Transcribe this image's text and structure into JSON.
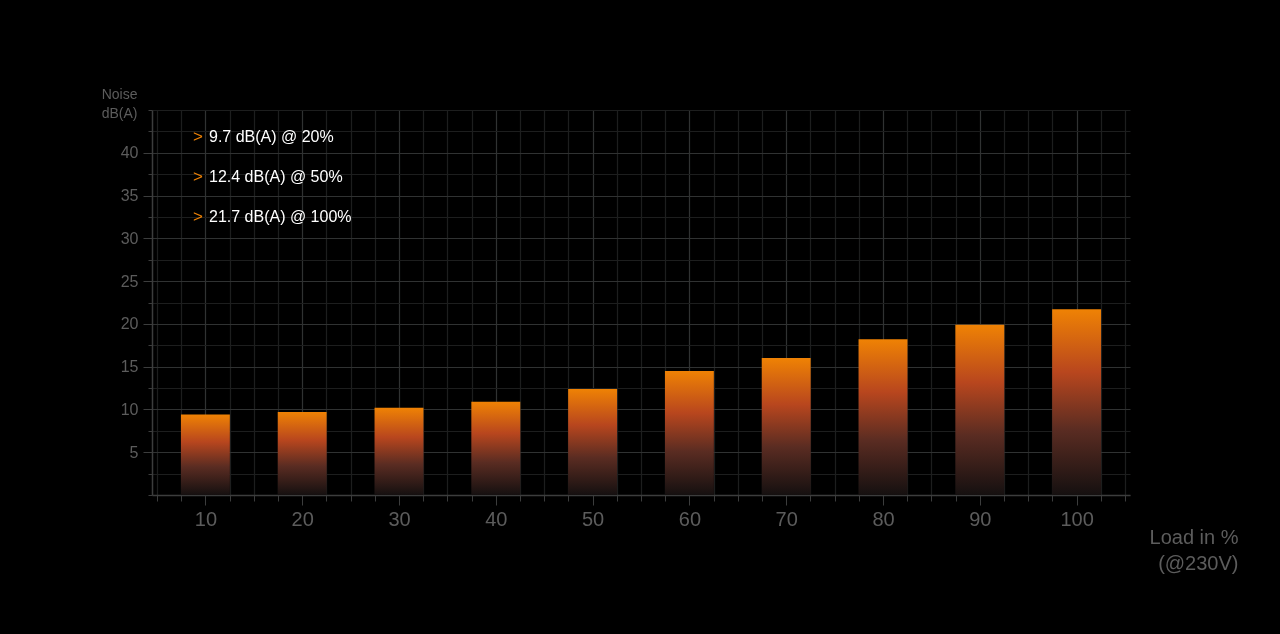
{
  "chart_data": {
    "type": "bar",
    "xlabel": "Load in % (@230V)",
    "ylabel": "Noise dB(A)",
    "x": [
      10,
      20,
      30,
      40,
      50,
      60,
      70,
      80,
      90,
      100
    ],
    "values": [
      9.4,
      9.7,
      10.2,
      10.9,
      12.4,
      14.5,
      16.0,
      18.2,
      19.9,
      21.7
    ],
    "color": "#ef8204",
    "xlim": [
      5,
      105
    ],
    "xticks": [
      {
        "value": 5,
        "label": null
      },
      {
        "value": 7.5,
        "label": null
      },
      10,
      {
        "value": 12.5,
        "label": null
      },
      {
        "value": 15,
        "label": null
      },
      {
        "value": 17.5,
        "label": null
      },
      20,
      {
        "value": 22.5,
        "label": null
      },
      {
        "value": 25,
        "label": null
      },
      {
        "value": 27.5,
        "label": null
      },
      30,
      {
        "value": 32.5,
        "label": null
      },
      {
        "value": 35,
        "label": null
      },
      {
        "value": 37.5,
        "label": null
      },
      40,
      {
        "value": 42.5,
        "label": null
      },
      {
        "value": 45,
        "label": null
      },
      {
        "value": 47.5,
        "label": null
      },
      50,
      {
        "value": 52.5,
        "label": null
      },
      {
        "value": 55,
        "label": null
      },
      {
        "value": 57.5,
        "label": null
      },
      60,
      {
        "value": 62.5,
        "label": null
      },
      {
        "value": 65,
        "label": null
      },
      {
        "value": 67.5,
        "label": null
      },
      70,
      {
        "value": 72.5,
        "label": null
      },
      {
        "value": 75,
        "label": null
      },
      {
        "value": 77.5,
        "label": null
      },
      80,
      {
        "value": 82.5,
        "label": null
      },
      {
        "value": 85,
        "label": null
      },
      {
        "value": 87.5,
        "label": null
      },
      90,
      {
        "value": 92.5,
        "label": null
      },
      {
        "value": 95,
        "label": null
      },
      {
        "value": 97.5,
        "label": null
      },
      100,
      {
        "value": 102.5,
        "label": null
      },
      {
        "value": 105,
        "label": null
      }
    ],
    "ylim": [
      0,
      45
    ],
    "yticks": [
      {
        "value": 0,
        "label": null
      },
      {
        "value": 2.5,
        "label": null
      },
      5,
      {
        "value": 7.5,
        "label": null
      },
      10,
      {
        "value": 12.5,
        "label": null
      },
      15,
      {
        "value": 17.5,
        "label": null
      },
      20,
      {
        "value": 22.5,
        "label": null
      },
      25,
      {
        "value": 27.5,
        "label": null
      },
      30,
      {
        "value": 32.5,
        "label": null
      },
      35,
      {
        "value": 37.5,
        "label": null
      },
      40,
      {
        "value": 42.5,
        "label": null
      },
      {
        "value": 45,
        "label": null
      }
    ],
    "grid": true,
    "annotations": [
      "> 9.7 dB(A) @ 20%",
      "> 12.4 dB(A) @ 50%",
      "> 21.7 dB(A) @ 100%"
    ]
  }
}
